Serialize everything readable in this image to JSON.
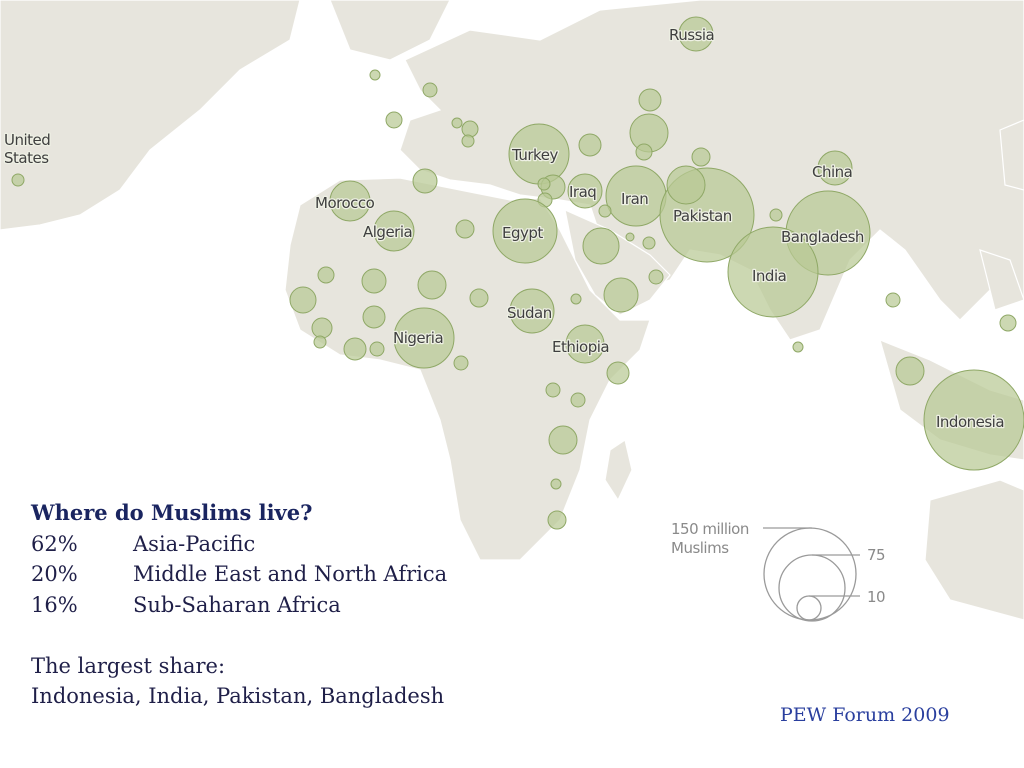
{
  "map": {
    "country_labels": [
      "Russia",
      "United States",
      "Turkey",
      "China",
      "Morocco",
      "Iraq",
      "Iran",
      "Pakistan",
      "Algeria",
      "Egypt",
      "Bangladesh",
      "India",
      "Sudan",
      "Nigeria",
      "Ethiopia",
      "Indonesia"
    ],
    "bubble_color": "#b9c994",
    "land_color": "#e7e5dd"
  },
  "legend": {
    "title": "150 million Muslims",
    "title_lines": [
      "150 million",
      "Muslims"
    ],
    "sizes": [
      "75",
      "10"
    ]
  },
  "text": {
    "heading": "Where do Muslims live?",
    "shares": [
      {
        "pct": "62%",
        "region": "Asia-Pacific"
      },
      {
        "pct": "20%",
        "region": "Middle East and North Africa"
      },
      {
        "pct": "16%",
        "region": "Sub-Saharan Africa"
      }
    ],
    "largest_heading": "The largest share:",
    "largest_list": "Indonesia, India, Pakistan, Bangladesh"
  },
  "source": "PEW Forum 2009"
}
